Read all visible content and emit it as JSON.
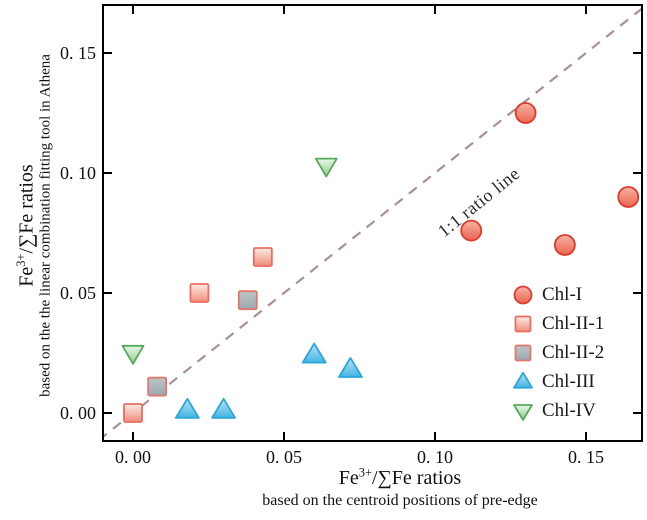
{
  "figure": {
    "background": "#ffffff",
    "frame_color": "#000000",
    "text_color": "#111111"
  },
  "chart_data": {
    "type": "scatter",
    "title": "",
    "grid": false,
    "legend_position": "lower right",
    "x_axis": {
      "title_base": "Fe",
      "title_sup": "3+",
      "title_rest": "/∑Fe ratios",
      "subtitle": "based on the centroid positions of pre-edge",
      "range": [
        -0.0096,
        0.1682
      ],
      "ticks": [
        {
          "value": 0.0,
          "label": "0. 00"
        },
        {
          "value": 0.05,
          "label": "0. 05"
        },
        {
          "value": 0.1,
          "label": "0. 10"
        },
        {
          "value": 0.15,
          "label": "0. 15"
        }
      ]
    },
    "y_axis": {
      "title_base": "Fe",
      "title_sup": "3+",
      "title_rest": "/∑Fe ratios",
      "subtitle": "based on the the linear combination fitting tool in Athena",
      "range": [
        -0.0113,
        0.1696
      ],
      "ticks": [
        {
          "value": 0.0,
          "label": "0. 00"
        },
        {
          "value": 0.05,
          "label": "0. 05"
        },
        {
          "value": 0.1,
          "label": "0. 10"
        },
        {
          "value": 0.15,
          "label": "0. 15"
        }
      ]
    },
    "reference_line": {
      "label": "1:1 ratio line",
      "style": "dashed",
      "color": "#a89093",
      "from": [
        -0.0113,
        -0.0113
      ],
      "to": [
        0.1696,
        0.1696
      ]
    },
    "series": [
      {
        "name": "Chl-I",
        "marker": "circle",
        "stroke": "#dd3b2c",
        "fill_top": "#f6b4a4",
        "fill_bottom": "#ec6450",
        "points": [
          [
            0.13,
            0.125
          ],
          [
            0.112,
            0.076
          ],
          [
            0.143,
            0.07
          ],
          [
            0.164,
            0.09
          ]
        ]
      },
      {
        "name": "Chl-II-1",
        "marker": "square",
        "stroke": "#ec6d60",
        "fill_top": "#fcece4",
        "fill_bottom": "#f08d7b",
        "points": [
          [
            0.0,
            0.0
          ],
          [
            0.022,
            0.05
          ],
          [
            0.043,
            0.065
          ]
        ]
      },
      {
        "name": "Chl-II-2",
        "marker": "square",
        "stroke": "#e0766c",
        "fill_top": "#bcc6c9",
        "fill_bottom": "#9ba8ae",
        "points": [
          [
            0.008,
            0.011
          ],
          [
            0.038,
            0.047
          ]
        ]
      },
      {
        "name": "Chl-III",
        "marker": "triangle-up",
        "stroke": "#2ba6d9",
        "fill_top": "#b9e5f6",
        "fill_bottom": "#44b3e2",
        "points": [
          [
            0.018,
            0.001
          ],
          [
            0.03,
            0.001
          ],
          [
            0.06,
            0.024
          ],
          [
            0.072,
            0.018
          ]
        ]
      },
      {
        "name": "Chl-IV",
        "marker": "triangle-down",
        "stroke": "#57a95e",
        "fill_top": "#eaf6e6",
        "fill_bottom": "#8fcd8d",
        "points": [
          [
            0.0,
            0.025
          ],
          [
            0.064,
            0.103
          ]
        ]
      }
    ]
  }
}
